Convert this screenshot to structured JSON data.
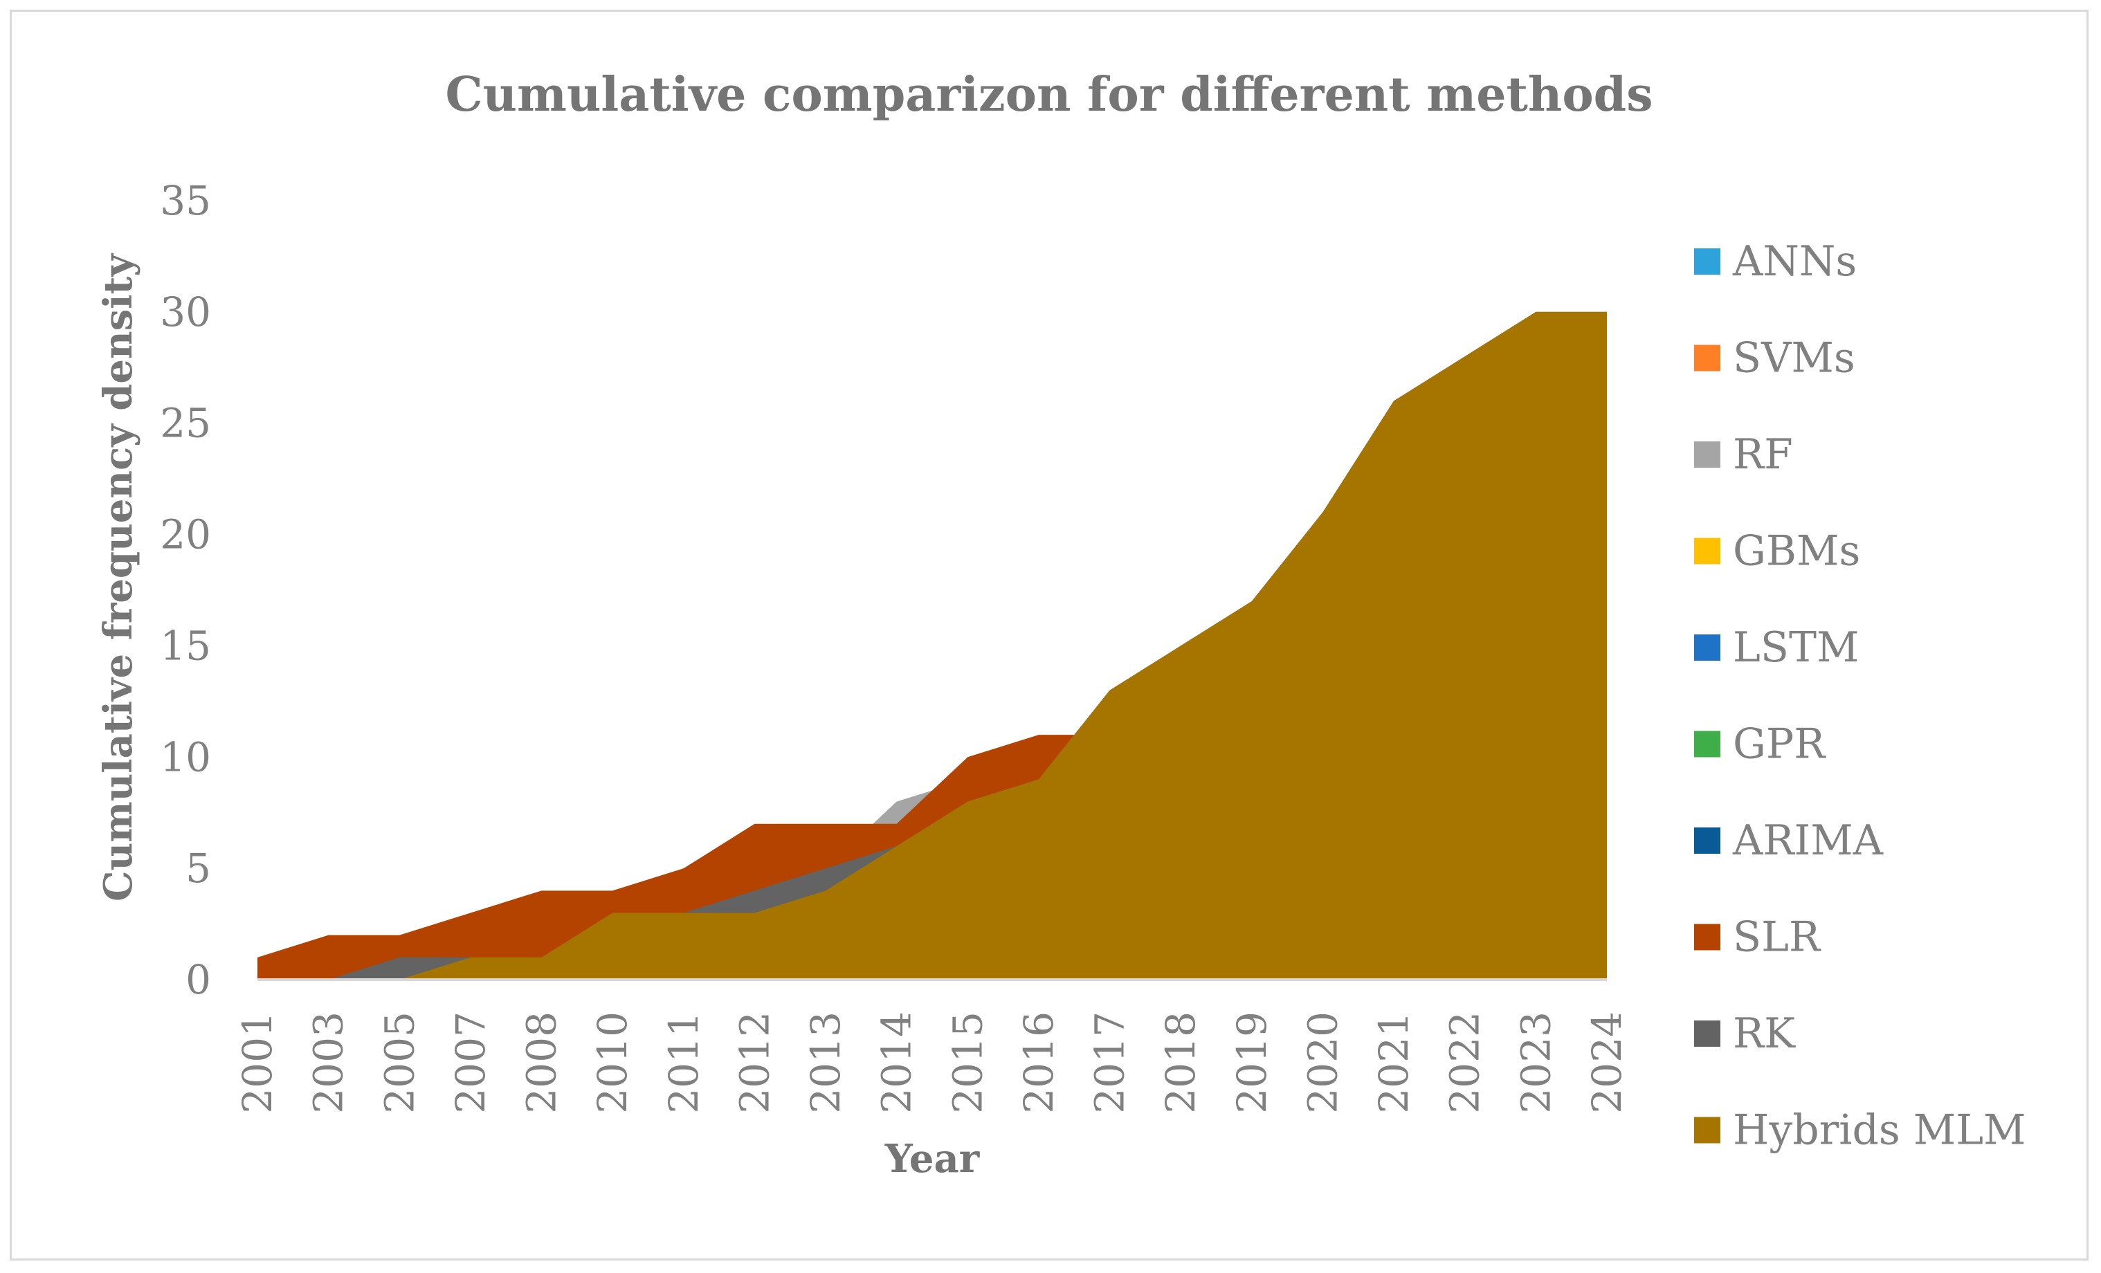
{
  "chart_data": {
    "type": "area",
    "title": "Cumulative comparizon for different methods",
    "xlabel": "Year",
    "ylabel": "Cumulative frequency density",
    "ylim": [
      0,
      35
    ],
    "yticks": [
      "0",
      "5",
      "10",
      "15",
      "20",
      "25",
      "30",
      "35"
    ],
    "grid": false,
    "legend_position": "right",
    "categories": [
      "2001",
      "2003",
      "2005",
      "2007",
      "2008",
      "2010",
      "2011",
      "2012",
      "2013",
      "2014",
      "2015",
      "2016",
      "2017",
      "2018",
      "2019",
      "2020",
      "2021",
      "2022",
      "2023",
      "2024"
    ],
    "series": [
      {
        "name": "ANNs",
        "color": "#2ea3db",
        "values": null
      },
      {
        "name": "SVMs",
        "color": "#ff7f27",
        "values": null
      },
      {
        "name": "RF",
        "color": "#a5a5a5",
        "values": [
          0,
          0,
          1,
          1,
          1,
          3,
          3,
          4,
          5,
          8,
          9,
          9,
          13,
          15,
          17,
          21,
          26,
          28,
          30,
          30
        ]
      },
      {
        "name": "GBMs",
        "color": "#ffc000",
        "values": null
      },
      {
        "name": "LSTM",
        "color": "#1f73c7",
        "values": null
      },
      {
        "name": "GPR",
        "color": "#3fae49",
        "values": null
      },
      {
        "name": "ARIMA",
        "color": "#0a5a95",
        "values": null
      },
      {
        "name": "SLR",
        "color": "#b54300",
        "values": [
          1,
          2,
          2,
          3,
          4,
          4,
          5,
          7,
          7,
          7,
          10,
          11,
          11,
          15,
          17,
          21,
          26,
          28,
          30,
          30
        ]
      },
      {
        "name": "RK",
        "color": "#636363",
        "values": [
          0,
          0,
          1,
          1,
          1,
          3,
          3,
          4,
          5,
          6,
          8,
          9,
          13,
          15,
          17,
          21,
          26,
          28,
          30,
          30
        ]
      },
      {
        "name": "Hybrids MLM",
        "color": "#a67500",
        "values": [
          0,
          0,
          0,
          1,
          1,
          3,
          3,
          3,
          4,
          6,
          8,
          9,
          13,
          15,
          17,
          21,
          26,
          28,
          30,
          30
        ]
      }
    ]
  }
}
